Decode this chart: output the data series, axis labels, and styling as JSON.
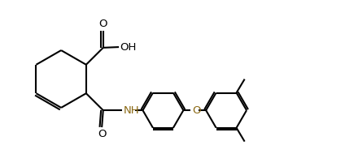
{
  "bg_color": "#ffffff",
  "line_color": "#000000",
  "nh_color": "#8B6914",
  "o_color": "#8B6914",
  "figsize": [
    4.24,
    1.95
  ],
  "dpi": 100,
  "line_width": 1.5,
  "xlim": [
    0,
    10.5
  ],
  "ylim": [
    0,
    4.8
  ]
}
